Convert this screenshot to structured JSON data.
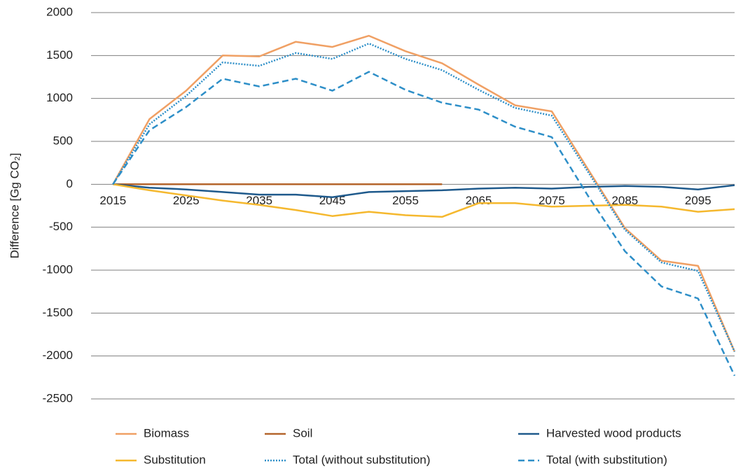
{
  "chart_data": {
    "type": "line",
    "y_label": "Difference [Gg CO₂]",
    "x": [
      2015,
      2020,
      2025,
      2030,
      2035,
      2040,
      2045,
      2050,
      2055,
      2060,
      2065,
      2070,
      2075,
      2080,
      2085,
      2090,
      2095,
      2100
    ],
    "xlim": [
      2012,
      2100
    ],
    "xticks": [
      2015,
      2025,
      2035,
      2045,
      2055,
      2065,
      2075,
      2085,
      2095
    ],
    "ylim": [
      -2500,
      2000
    ],
    "yticks": [
      -2500,
      -2000,
      -1500,
      -1000,
      -500,
      0,
      500,
      1000,
      1500,
      2000
    ],
    "grid": true,
    "legend": "bottom",
    "series": [
      {
        "name": "Biomass",
        "color": "#f0a064",
        "line_style": "solid",
        "values": [
          0,
          760,
          1090,
          1500,
          1490,
          1660,
          1600,
          1730,
          1550,
          1410,
          1160,
          920,
          850,
          170,
          -510,
          -890,
          -950,
          -1950
        ]
      },
      {
        "name": "Soil",
        "color": "#b4652c",
        "line_style": "solid",
        "values": [
          0,
          0,
          0,
          0,
          0,
          0,
          0,
          0,
          0,
          0,
          null,
          null,
          null,
          null,
          null,
          null,
          null,
          null
        ]
      },
      {
        "name": "Harvested wood products",
        "color": "#1f5a8c",
        "line_style": "solid",
        "values": [
          0,
          -40,
          -60,
          -90,
          -120,
          -120,
          -150,
          -90,
          -80,
          -70,
          -50,
          -40,
          -50,
          -30,
          -20,
          -30,
          -60,
          -10
        ]
      },
      {
        "name": "Substitution",
        "color": "#f5b82e",
        "line_style": "solid",
        "values": [
          0,
          -70,
          -130,
          -190,
          -240,
          -300,
          -370,
          -320,
          -360,
          -380,
          -220,
          -220,
          -260,
          -250,
          -240,
          -260,
          -320,
          -290
        ]
      },
      {
        "name": "Total (without substitution)",
        "color": "#2e8fc8",
        "line_style": "dotted",
        "values": [
          0,
          700,
          1030,
          1420,
          1380,
          1530,
          1460,
          1640,
          1460,
          1330,
          1100,
          890,
          800,
          140,
          -530,
          -910,
          -1010,
          -1950
        ]
      },
      {
        "name": "Total (with substitution)",
        "color": "#2e8fc8",
        "line_style": "dashed",
        "values": [
          0,
          630,
          900,
          1230,
          1140,
          1230,
          1090,
          1310,
          1100,
          950,
          870,
          670,
          550,
          -140,
          -780,
          -1190,
          -1330,
          -2230
        ]
      }
    ]
  }
}
